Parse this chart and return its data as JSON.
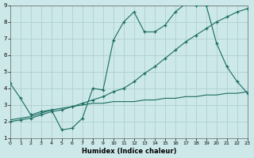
{
  "xlabel": "Humidex (Indice chaleur)",
  "xlim": [
    0,
    23
  ],
  "ylim": [
    1,
    9
  ],
  "xticks": [
    0,
    1,
    2,
    3,
    4,
    5,
    6,
    7,
    8,
    9,
    10,
    11,
    12,
    13,
    14,
    15,
    16,
    17,
    18,
    19,
    20,
    21,
    22,
    23
  ],
  "yticks": [
    1,
    2,
    3,
    4,
    5,
    6,
    7,
    8,
    9
  ],
  "background_color": "#cce8e8",
  "grid_color": "#aacccc",
  "line_color": "#1a6b60",
  "line1_x": [
    0,
    1,
    2,
    3,
    4,
    5,
    6,
    7,
    8,
    9,
    10,
    11,
    12,
    13,
    14,
    15,
    16,
    17,
    18,
    19,
    20,
    21,
    22,
    23
  ],
  "line1_y": [
    4.3,
    3.4,
    2.4,
    2.6,
    2.7,
    1.5,
    1.6,
    2.2,
    4.0,
    3.9,
    6.9,
    8.0,
    8.6,
    7.4,
    7.4,
    7.8,
    8.6,
    9.1,
    9.0,
    9.0,
    6.7,
    5.3,
    4.4,
    3.7
  ],
  "line2_x": [
    0,
    1,
    2,
    3,
    4,
    5,
    6,
    7,
    8,
    9,
    10,
    11,
    12,
    13,
    14,
    15,
    16,
    17,
    18,
    19,
    20,
    21,
    22,
    23
  ],
  "line2_y": [
    2.0,
    2.1,
    2.2,
    2.4,
    2.6,
    2.7,
    2.9,
    3.1,
    3.3,
    3.5,
    3.8,
    4.0,
    4.4,
    4.9,
    5.3,
    5.8,
    6.3,
    6.8,
    7.2,
    7.6,
    8.0,
    8.3,
    8.6,
    8.8
  ],
  "line3_x": [
    0,
    1,
    2,
    3,
    4,
    5,
    6,
    7,
    8,
    9,
    10,
    11,
    12,
    13,
    14,
    15,
    16,
    17,
    18,
    19,
    20,
    21,
    22,
    23
  ],
  "line3_y": [
    2.1,
    2.2,
    2.3,
    2.5,
    2.7,
    2.8,
    2.9,
    3.0,
    3.1,
    3.1,
    3.2,
    3.2,
    3.2,
    3.3,
    3.3,
    3.4,
    3.4,
    3.5,
    3.5,
    3.6,
    3.6,
    3.7,
    3.7,
    3.8
  ]
}
